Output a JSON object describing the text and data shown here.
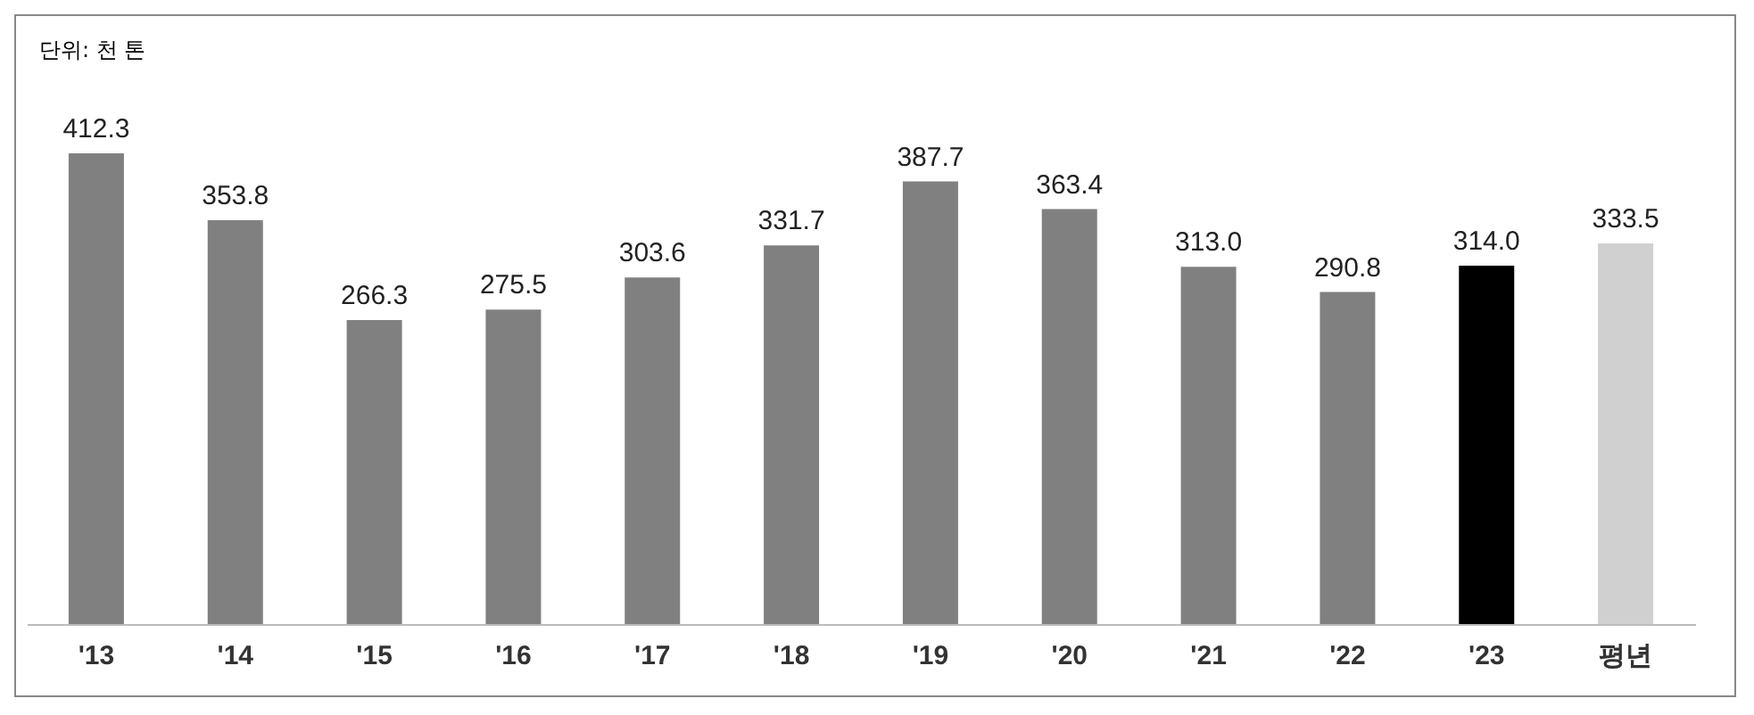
{
  "chart_data": {
    "type": "bar",
    "categories": [
      "'13",
      "'14",
      "'15",
      "'16",
      "'17",
      "'18",
      "'19",
      "'20",
      "'21",
      "'22",
      "'23",
      "평년"
    ],
    "values": [
      412.3,
      353.8,
      266.3,
      275.5,
      303.6,
      331.7,
      387.7,
      363.4,
      313.0,
      290.8,
      314.0,
      333.5
    ],
    "colors": [
      "#808080",
      "#808080",
      "#808080",
      "#808080",
      "#808080",
      "#808080",
      "#808080",
      "#808080",
      "#808080",
      "#808080",
      "#000000",
      "#d0d0d0"
    ],
    "value_labels": [
      "412.3",
      "353.8",
      "266.3",
      "275.5",
      "303.6",
      "331.7",
      "387.7",
      "363.4",
      "313.0",
      "290.8",
      "314.0",
      "333.5"
    ],
    "grid": false,
    "tick_labels": "x",
    "annotations": [
      "단위: 천 톤"
    ]
  }
}
